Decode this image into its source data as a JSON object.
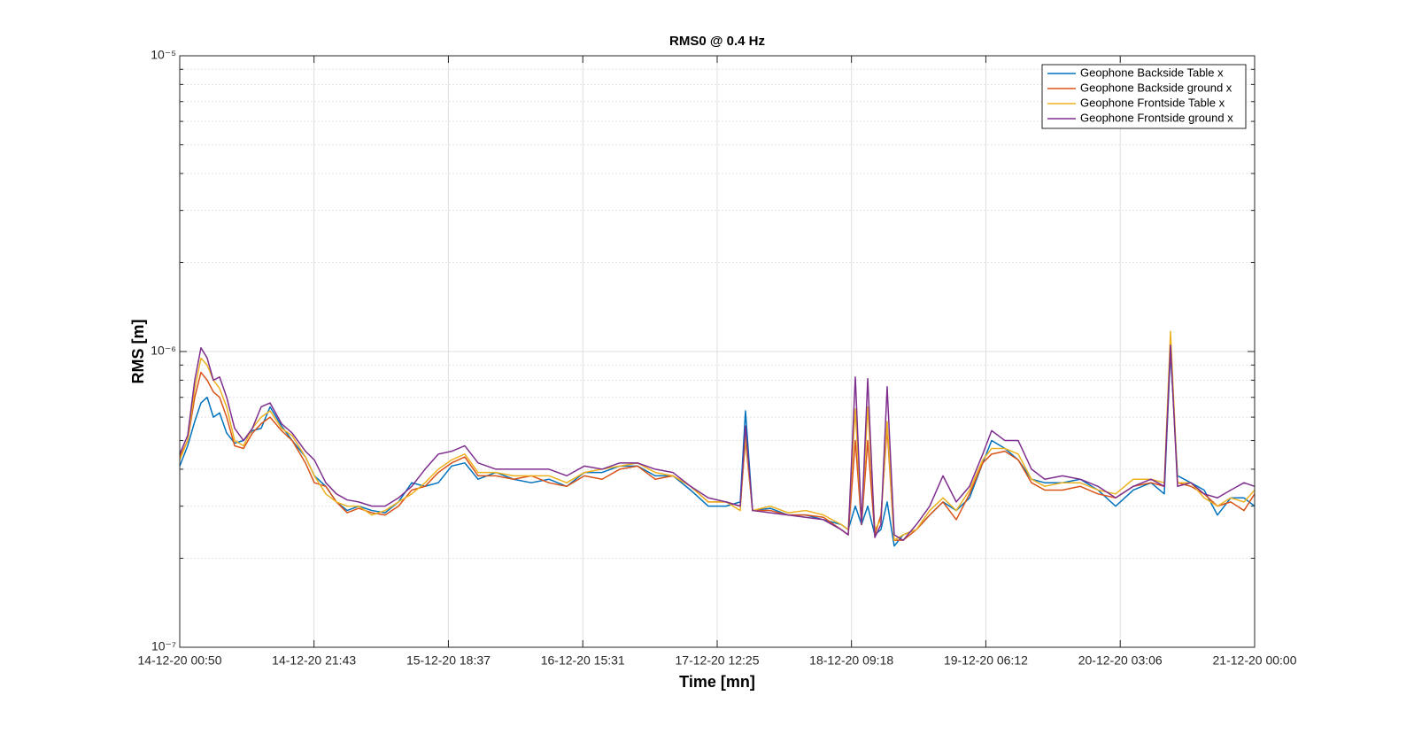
{
  "chart_data": {
    "type": "line",
    "title": "RMS0 @ 0.4 Hz",
    "xlabel": "Time [mn]",
    "ylabel": "RMS [m]",
    "yscale": "log",
    "grid": true,
    "minor_grid": true,
    "legend": "upper right",
    "xlim": [
      0,
      10030
    ],
    "xticks": [
      {
        "value": 0,
        "label": "14-12-20 00:50"
      },
      {
        "value": 1253,
        "label": "14-12-20 21:43"
      },
      {
        "value": 2507,
        "label": "15-12-20 18:37"
      },
      {
        "value": 3761,
        "label": "16-12-20 15:31"
      },
      {
        "value": 5015,
        "label": "17-12-20 12:25"
      },
      {
        "value": 6268,
        "label": "18-12-20 09:18"
      },
      {
        "value": 7522,
        "label": "19-12-20 06:12"
      },
      {
        "value": 8776,
        "label": "20-12-20 03:06"
      },
      {
        "value": 10030,
        "label": "21-12-20 00:00"
      }
    ],
    "ylim": [
      1e-07,
      1e-05
    ],
    "yticks": [
      {
        "value": 1e-07,
        "label": "10⁻⁷"
      },
      {
        "value": 1e-06,
        "label": "10⁻⁶"
      },
      {
        "value": 1e-05,
        "label": "10⁻⁵"
      }
    ],
    "x": [
      0,
      74,
      140,
      198,
      256,
      314,
      372,
      438,
      512,
      595,
      678,
      760,
      843,
      950,
      1049,
      1173,
      1256,
      1363,
      1462,
      1562,
      1669,
      1793,
      1917,
      2041,
      2165,
      2289,
      2413,
      2537,
      2660,
      2784,
      2950,
      3115,
      3280,
      3445,
      3611,
      3776,
      3941,
      4106,
      4271,
      4437,
      4602,
      4767,
      4932,
      5098,
      5230,
      5279,
      5345,
      5511,
      5676,
      5841,
      6006,
      6172,
      6238,
      6304,
      6362,
      6420,
      6486,
      6543,
      6601,
      6667,
      6750,
      6874,
      6998,
      7122,
      7246,
      7370,
      7493,
      7576,
      7700,
      7824,
      7948,
      8072,
      8237,
      8403,
      8568,
      8733,
      8898,
      9063,
      9187,
      9245,
      9311,
      9435,
      9559,
      9683,
      9807,
      9931,
      10030
    ],
    "series": [
      {
        "name": "Geophone Backside Table x",
        "color": "#0072BD",
        "values": [
          4.1e-07,
          4.8e-07,
          5.8e-07,
          6.7e-07,
          7e-07,
          6e-07,
          6.2e-07,
          5.3e-07,
          4.9e-07,
          5e-07,
          5.4e-07,
          5.5e-07,
          6.5e-07,
          5.6e-07,
          5e-07,
          4.4e-07,
          3.8e-07,
          3.5e-07,
          3.1e-07,
          2.9e-07,
          3e-07,
          2.9e-07,
          2.85e-07,
          3.1e-07,
          3.6e-07,
          3.5e-07,
          3.6e-07,
          4.1e-07,
          4.2e-07,
          3.7e-07,
          3.9e-07,
          3.7e-07,
          3.6e-07,
          3.7e-07,
          3.5e-07,
          3.9e-07,
          3.9e-07,
          4.1e-07,
          4.1e-07,
          3.8e-07,
          3.8e-07,
          3.4e-07,
          3e-07,
          3e-07,
          3.1e-07,
          6.3e-07,
          2.9e-07,
          2.95e-07,
          2.8e-07,
          2.8e-07,
          2.7e-07,
          2.6e-07,
          2.5e-07,
          3e-07,
          2.6e-07,
          3e-07,
          2.4e-07,
          2.5e-07,
          3.1e-07,
          2.2e-07,
          2.4e-07,
          2.5e-07,
          2.8e-07,
          3.1e-07,
          2.9e-07,
          3.2e-07,
          4.2e-07,
          5e-07,
          4.7e-07,
          4.3e-07,
          3.7e-07,
          3.6e-07,
          3.6e-07,
          3.7e-07,
          3.4e-07,
          3e-07,
          3.4e-07,
          3.6e-07,
          3.3e-07,
          1e-06,
          3.8e-07,
          3.6e-07,
          3.4e-07,
          2.8e-07,
          3.2e-07,
          3.2e-07,
          3e-07
        ]
      },
      {
        "name": "Geophone Backside ground x",
        "color": "#D95319",
        "values": [
          4.4e-07,
          5e-07,
          7e-07,
          8.5e-07,
          8e-07,
          7.3e-07,
          7e-07,
          6e-07,
          4.8e-07,
          4.7e-07,
          5.3e-07,
          5.7e-07,
          6e-07,
          5.4e-07,
          5e-07,
          4.2e-07,
          3.6e-07,
          3.5e-07,
          3.1e-07,
          2.85e-07,
          2.95e-07,
          2.85e-07,
          2.8e-07,
          3e-07,
          3.4e-07,
          3.5e-07,
          3.9e-07,
          4.2e-07,
          4.4e-07,
          3.8e-07,
          3.8e-07,
          3.7e-07,
          3.8e-07,
          3.6e-07,
          3.5e-07,
          3.8e-07,
          3.7e-07,
          4e-07,
          4.1e-07,
          3.7e-07,
          3.8e-07,
          3.5e-07,
          3.1e-07,
          3.1e-07,
          3e-07,
          5e-07,
          2.9e-07,
          2.9e-07,
          2.8e-07,
          2.8e-07,
          2.75e-07,
          2.5e-07,
          2.4e-07,
          5e-07,
          2.6e-07,
          5e-07,
          2.4e-07,
          2.8e-07,
          5.5e-07,
          2.3e-07,
          2.3e-07,
          2.5e-07,
          2.8e-07,
          3.1e-07,
          2.7e-07,
          3.3e-07,
          4.2e-07,
          4.5e-07,
          4.6e-07,
          4.3e-07,
          3.6e-07,
          3.4e-07,
          3.4e-07,
          3.5e-07,
          3.3e-07,
          3.2e-07,
          3.5e-07,
          3.6e-07,
          3.5e-07,
          1.05e-06,
          3.6e-07,
          3.5e-07,
          3.3e-07,
          3e-07,
          3.1e-07,
          2.9e-07,
          3.3e-07
        ]
      },
      {
        "name": "Geophone Frontside Table x",
        "color": "#EDB120",
        "values": [
          4.3e-07,
          5e-07,
          7.5e-07,
          9.5e-07,
          9e-07,
          8e-07,
          7.5e-07,
          6.5e-07,
          5e-07,
          4.8e-07,
          5.5e-07,
          6e-07,
          6.3e-07,
          5.5e-07,
          5.2e-07,
          4.4e-07,
          3.8e-07,
          3.3e-07,
          3.1e-07,
          3e-07,
          3e-07,
          2.8e-07,
          2.9e-07,
          3.1e-07,
          3.3e-07,
          3.6e-07,
          4e-07,
          4.3e-07,
          4.5e-07,
          3.9e-07,
          3.9e-07,
          3.8e-07,
          3.8e-07,
          3.8e-07,
          3.6e-07,
          3.9e-07,
          4e-07,
          4.1e-07,
          4.2e-07,
          3.9e-07,
          3.8e-07,
          3.5e-07,
          3.1e-07,
          3.1e-07,
          2.9e-07,
          5.2e-07,
          2.9e-07,
          3e-07,
          2.85e-07,
          2.9e-07,
          2.8e-07,
          2.6e-07,
          2.5e-07,
          6.4e-07,
          2.6e-07,
          6.5e-07,
          2.5e-07,
          2.7e-07,
          5.8e-07,
          2.3e-07,
          2.4e-07,
          2.5e-07,
          2.9e-07,
          3.2e-07,
          2.9e-07,
          3.4e-07,
          4.3e-07,
          4.7e-07,
          4.7e-07,
          4.5e-07,
          3.7e-07,
          3.5e-07,
          3.6e-07,
          3.6e-07,
          3.4e-07,
          3.3e-07,
          3.7e-07,
          3.7e-07,
          3.6e-07,
          1.17e-06,
          3.6e-07,
          3.6e-07,
          3.2e-07,
          3e-07,
          3.2e-07,
          3.1e-07,
          3.4e-07
        ]
      },
      {
        "name": "Geophone Frontside ground x",
        "color": "#7E2F8E",
        "values": [
          4.5e-07,
          5.2e-07,
          8e-07,
          1.03e-06,
          9.5e-07,
          8e-07,
          8.2e-07,
          7e-07,
          5.5e-07,
          5e-07,
          5.5e-07,
          6.5e-07,
          6.7e-07,
          5.7e-07,
          5.3e-07,
          4.6e-07,
          4.3e-07,
          3.6e-07,
          3.3e-07,
          3.15e-07,
          3.1e-07,
          3e-07,
          3e-07,
          3.2e-07,
          3.5e-07,
          4e-07,
          4.5e-07,
          4.6e-07,
          4.8e-07,
          4.2e-07,
          4e-07,
          4e-07,
          4e-07,
          4e-07,
          3.8e-07,
          4.1e-07,
          4e-07,
          4.2e-07,
          4.2e-07,
          4e-07,
          3.9e-07,
          3.5e-07,
          3.2e-07,
          3.1e-07,
          3e-07,
          5.6e-07,
          2.9e-07,
          2.85e-07,
          2.8e-07,
          2.75e-07,
          2.7e-07,
          2.5e-07,
          2.4e-07,
          8.2e-07,
          2.6e-07,
          8.1e-07,
          2.35e-07,
          2.6e-07,
          7.6e-07,
          2.4e-07,
          2.3e-07,
          2.6e-07,
          3e-07,
          3.8e-07,
          3.1e-07,
          3.5e-07,
          4.5e-07,
          5.4e-07,
          5e-07,
          5e-07,
          4e-07,
          3.7e-07,
          3.8e-07,
          3.7e-07,
          3.5e-07,
          3.2e-07,
          3.5e-07,
          3.7e-07,
          3.5e-07,
          1.05e-06,
          3.5e-07,
          3.6e-07,
          3.3e-07,
          3.2e-07,
          3.4e-07,
          3.6e-07,
          3.5e-07
        ]
      }
    ]
  }
}
